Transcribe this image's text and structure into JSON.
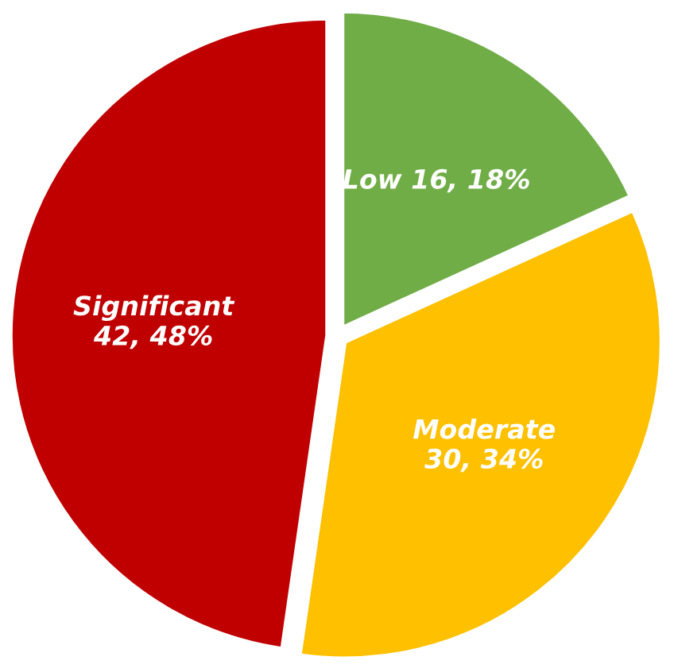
{
  "chart_data": {
    "type": "pie",
    "categories": [
      "Low",
      "Moderate",
      "Significant"
    ],
    "values": [
      16,
      30,
      42
    ],
    "value_labels": [
      "16, 18%",
      "30, 34%",
      "42, 48%"
    ],
    "colors": [
      "#70ad47",
      "#ffc000",
      "#c00000"
    ]
  }
}
